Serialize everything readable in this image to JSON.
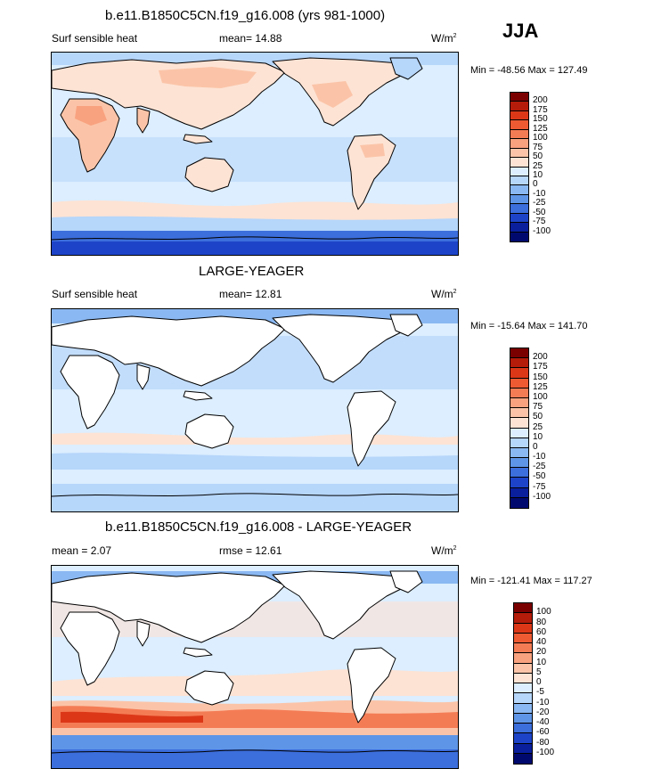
{
  "season": "JJA",
  "panels": [
    {
      "title": "b.e11.B1850C5CN.f19_g16.008 (yrs 981-1000)",
      "left_label": "Surf sensible heat",
      "center_label": "mean=  14.88",
      "units": "W/m",
      "units_sup": "2",
      "minmax": "Min = -48.56 Max = 127.49",
      "colorbar": {
        "levels": [
          "200",
          "175",
          "150",
          "125",
          "100",
          "75",
          "50",
          "25",
          "10",
          "0",
          "-10",
          "-25",
          "-50",
          "-75",
          "-100"
        ],
        "colors": [
          "#7a0000",
          "#b51c0a",
          "#dc3818",
          "#ee5a32",
          "#f47c55",
          "#f9a27f",
          "#fbc4a8",
          "#fde3d4",
          "#dceeff",
          "#b6d6fa",
          "#8ab8f2",
          "#5f95e6",
          "#3c6edc",
          "#1d44c8",
          "#0a1f9c",
          "#000a6e"
        ]
      }
    },
    {
      "title": "LARGE-YEAGER",
      "left_label": "Surf sensible heat",
      "center_label": "mean=  12.81",
      "units": "W/m",
      "units_sup": "2",
      "minmax": "Min = -15.64 Max = 141.70",
      "colorbar": {
        "levels": [
          "200",
          "175",
          "150",
          "125",
          "100",
          "75",
          "50",
          "25",
          "10",
          "0",
          "-10",
          "-25",
          "-50",
          "-75",
          "-100"
        ],
        "colors": [
          "#7a0000",
          "#b51c0a",
          "#dc3818",
          "#ee5a32",
          "#f47c55",
          "#f9a27f",
          "#fbc4a8",
          "#fde3d4",
          "#dceeff",
          "#b6d6fa",
          "#8ab8f2",
          "#5f95e6",
          "#3c6edc",
          "#1d44c8",
          "#0a1f9c",
          "#000a6e"
        ]
      }
    },
    {
      "title": "b.e11.B1850C5CN.f19_g16.008 - LARGE-YEAGER",
      "left_label": "mean =   2.07",
      "center_label": "rmse =  12.61",
      "units": "W/m",
      "units_sup": "2",
      "minmax": "Min = -121.41 Max = 117.27",
      "colorbar": {
        "levels": [
          "100",
          "80",
          "60",
          "40",
          "20",
          "10",
          "5",
          "0",
          "-5",
          "-10",
          "-20",
          "-40",
          "-60",
          "-80",
          "-100"
        ],
        "colors": [
          "#7a0000",
          "#b51c0a",
          "#dc3818",
          "#ee5a32",
          "#f47c55",
          "#f9a27f",
          "#fbc4a8",
          "#fde3d4",
          "#dceeff",
          "#b6d6fa",
          "#8ab8f2",
          "#5f95e6",
          "#3c6edc",
          "#1d44c8",
          "#0a1f9c",
          "#000a6e"
        ]
      }
    }
  ]
}
